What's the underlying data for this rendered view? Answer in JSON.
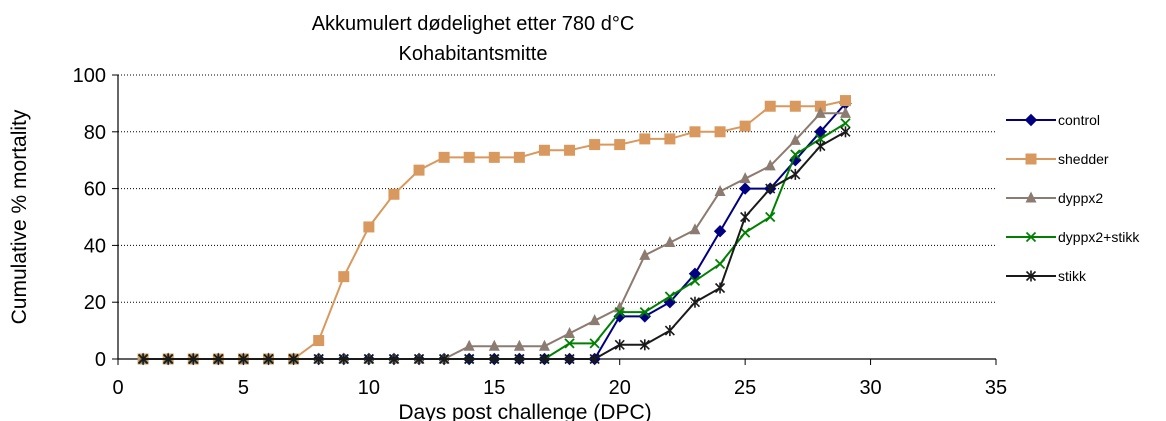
{
  "chart_data": {
    "type": "line",
    "title_line1": "Akkumulert dødelighet etter 780 d°C",
    "title_line2": "Kohabitantsmitte",
    "xlabel": "Days post challenge (DPC)",
    "ylabel": "Cumulative % mortality",
    "xlim": [
      0,
      35
    ],
    "ylim": [
      0,
      100
    ],
    "xticks": [
      0,
      5,
      10,
      15,
      20,
      25,
      30,
      35
    ],
    "yticks": [
      0,
      20,
      40,
      60,
      80,
      100
    ],
    "grid": "horizontal",
    "legend_position": "right",
    "series": [
      {
        "name": " control",
        "color": "#000080",
        "marker": "diamond",
        "points": [
          [
            1,
            0
          ],
          [
            2,
            0
          ],
          [
            3,
            0
          ],
          [
            4,
            0
          ],
          [
            5,
            0
          ],
          [
            6,
            0
          ],
          [
            7,
            0
          ],
          [
            8,
            0
          ],
          [
            9,
            0
          ],
          [
            10,
            0
          ],
          [
            11,
            0
          ],
          [
            12,
            0
          ],
          [
            13,
            0
          ],
          [
            14,
            0
          ],
          [
            15,
            0
          ],
          [
            16,
            0
          ],
          [
            17,
            0
          ],
          [
            18,
            0
          ],
          [
            19,
            0
          ],
          [
            20,
            15
          ],
          [
            21,
            15
          ],
          [
            22,
            20
          ],
          [
            23,
            30
          ],
          [
            24,
            45
          ],
          [
            25,
            60
          ],
          [
            26,
            60
          ],
          [
            27,
            70
          ],
          [
            28,
            80
          ],
          [
            29,
            90
          ]
        ]
      },
      {
        "name": "shedder",
        "color": "#d9995e",
        "marker": "square",
        "points": [
          [
            1,
            0
          ],
          [
            2,
            0
          ],
          [
            3,
            0
          ],
          [
            4,
            0
          ],
          [
            5,
            0
          ],
          [
            6,
            0
          ],
          [
            7,
            0
          ],
          [
            8,
            6.5
          ],
          [
            9,
            29
          ],
          [
            10,
            46.5
          ],
          [
            11,
            58
          ],
          [
            12,
            66.5
          ],
          [
            13,
            71
          ],
          [
            14,
            71
          ],
          [
            15,
            71
          ],
          [
            16,
            71
          ],
          [
            17,
            73.5
          ],
          [
            18,
            73.5
          ],
          [
            19,
            75.5
          ],
          [
            20,
            75.5
          ],
          [
            21,
            77.5
          ],
          [
            22,
            77.5
          ],
          [
            23,
            80
          ],
          [
            24,
            80
          ],
          [
            25,
            82
          ],
          [
            26,
            89
          ],
          [
            27,
            89
          ],
          [
            28,
            89
          ],
          [
            29,
            91
          ]
        ]
      },
      {
        "name": "dyppx2",
        "color": "#8c7b70",
        "marker": "triangle",
        "points": [
          [
            1,
            0
          ],
          [
            2,
            0
          ],
          [
            3,
            0
          ],
          [
            4,
            0
          ],
          [
            5,
            0
          ],
          [
            6,
            0
          ],
          [
            7,
            0
          ],
          [
            8,
            0
          ],
          [
            9,
            0
          ],
          [
            10,
            0
          ],
          [
            11,
            0
          ],
          [
            12,
            0
          ],
          [
            13,
            0
          ],
          [
            14,
            4.5
          ],
          [
            15,
            4.5
          ],
          [
            16,
            4.5
          ],
          [
            17,
            4.5
          ],
          [
            18,
            9
          ],
          [
            19,
            13.5
          ],
          [
            20,
            18
          ],
          [
            21,
            36.5
          ],
          [
            22,
            41
          ],
          [
            23,
            45.5
          ],
          [
            24,
            59
          ],
          [
            25,
            63.5
          ],
          [
            26,
            68
          ],
          [
            27,
            77
          ],
          [
            28,
            86.5
          ],
          [
            29,
            86.5
          ]
        ]
      },
      {
        "name": "dyppx2+stikk",
        "color": "#008000",
        "marker": "x",
        "points": [
          [
            1,
            0
          ],
          [
            2,
            0
          ],
          [
            3,
            0
          ],
          [
            4,
            0
          ],
          [
            5,
            0
          ],
          [
            6,
            0
          ],
          [
            7,
            0
          ],
          [
            8,
            0
          ],
          [
            9,
            0
          ],
          [
            10,
            0
          ],
          [
            11,
            0
          ],
          [
            12,
            0
          ],
          [
            13,
            0
          ],
          [
            14,
            0
          ],
          [
            15,
            0
          ],
          [
            16,
            0
          ],
          [
            17,
            0
          ],
          [
            18,
            5.5
          ],
          [
            19,
            5.5
          ],
          [
            20,
            16.5
          ],
          [
            21,
            16.5
          ],
          [
            22,
            22
          ],
          [
            23,
            27.5
          ],
          [
            24,
            33.5
          ],
          [
            25,
            44.5
          ],
          [
            26,
            50
          ],
          [
            27,
            72
          ],
          [
            28,
            77.5
          ],
          [
            29,
            83
          ]
        ]
      },
      {
        "name": "stikk",
        "color": "#1a1a1a",
        "marker": "star",
        "points": [
          [
            1,
            0
          ],
          [
            2,
            0
          ],
          [
            3,
            0
          ],
          [
            4,
            0
          ],
          [
            5,
            0
          ],
          [
            6,
            0
          ],
          [
            7,
            0
          ],
          [
            8,
            0
          ],
          [
            9,
            0
          ],
          [
            10,
            0
          ],
          [
            11,
            0
          ],
          [
            12,
            0
          ],
          [
            13,
            0
          ],
          [
            14,
            0
          ],
          [
            15,
            0
          ],
          [
            16,
            0
          ],
          [
            17,
            0
          ],
          [
            18,
            0
          ],
          [
            19,
            0
          ],
          [
            20,
            5
          ],
          [
            21,
            5
          ],
          [
            22,
            10
          ],
          [
            23,
            20
          ],
          [
            24,
            25
          ],
          [
            25,
            50
          ],
          [
            26,
            60
          ],
          [
            27,
            65
          ],
          [
            28,
            75
          ],
          [
            29,
            80
          ]
        ]
      }
    ]
  }
}
